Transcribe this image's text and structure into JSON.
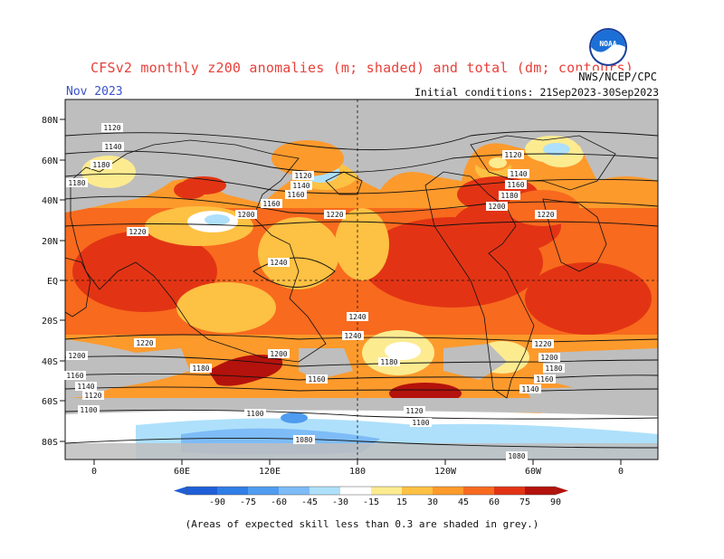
{
  "title": "CFSv2 monthly z200 anomalies (m; shaded) and total (dm; contours)",
  "month": "Nov 2023",
  "initial_conditions": "Initial conditions: 21Sep2023-30Sep2023",
  "agency": "NWS/NCEP/CPC",
  "logo_text": "NOAA",
  "footnote": "(Areas of expected skill less than 0.3 are shaded in grey.)",
  "lat_labels": [
    "80N",
    "60N",
    "40N",
    "20N",
    "EQ",
    "20S",
    "40S",
    "60S",
    "80S"
  ],
  "lon_labels": [
    "0",
    "60E",
    "120E",
    "180",
    "120W",
    "60W",
    "0"
  ],
  "colorbar": {
    "ticks": [
      "-90",
      "-75",
      "-60",
      "-45",
      "-30",
      "-15",
      "15",
      "30",
      "45",
      "60",
      "75",
      "90"
    ],
    "colors": [
      "#1e5fd8",
      "#2f7de6",
      "#4f9cf0",
      "#7dbcf7",
      "#aee0fb",
      "#ffffff",
      "#fdeb90",
      "#fdc143",
      "#fd9a2c",
      "#f86a1e",
      "#e23414",
      "#b4120c"
    ]
  },
  "contour_labels": [
    "1120",
    "1140",
    "1160",
    "1180",
    "1200",
    "1220",
    "1240",
    "1080",
    "1100"
  ],
  "colors": {
    "title": "#e8413a",
    "month": "#3a52c8",
    "grey_mask": "#bebebe"
  }
}
